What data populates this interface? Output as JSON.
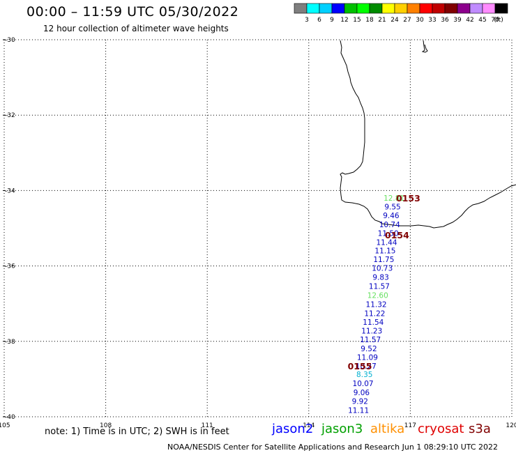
{
  "header": {
    "title": "00:00 – 11:59 UTC 05/30/2022",
    "subtitle": "12 hour collection of altimeter wave heights"
  },
  "scale": {
    "colors": [
      "#7f7f7f",
      "#00ffff",
      "#00d0ff",
      "#0000ff",
      "#00c000",
      "#00ff00",
      "#008c00",
      "#ffff00",
      "#ffd000",
      "#ff8000",
      "#ff0000",
      "#c00000",
      "#800000",
      "#8c008c",
      "#c08cff",
      "#ff8cff",
      "#000000"
    ],
    "labels": [
      "3",
      "6",
      "9",
      "12",
      "15",
      "18",
      "21",
      "24",
      "27",
      "30",
      "33",
      "36",
      "39",
      "42",
      "45",
      "70",
      "(ft)"
    ]
  },
  "axes": {
    "lat_labels": [
      "-30",
      "-32",
      "-34",
      "-36",
      "-38",
      "-40"
    ],
    "lon_labels": [
      "105",
      "108",
      "111",
      "114",
      "117",
      "120"
    ]
  },
  "observations": [
    {
      "value": "12.81",
      "color": "#66e060",
      "lat": -34.27
    },
    {
      "value": "9.55",
      "color": "#0000c0",
      "lat": -34.5
    },
    {
      "value": "9.46",
      "color": "#0000c0",
      "lat": -34.73
    },
    {
      "value": "10.74",
      "color": "#0000c0",
      "lat": -34.97
    },
    {
      "value": "11.50",
      "color": "#0000c0",
      "lat": -35.2
    },
    {
      "value": "11.44",
      "color": "#0000c0",
      "lat": -35.44
    },
    {
      "value": "11.15",
      "color": "#0000c0",
      "lat": -35.67
    },
    {
      "value": "11.75",
      "color": "#0000c0",
      "lat": -35.9
    },
    {
      "value": "10.73",
      "color": "#0000c0",
      "lat": -36.13
    },
    {
      "value": "9.83",
      "color": "#0000c0",
      "lat": -36.37
    },
    {
      "value": "11.57",
      "color": "#0000c0",
      "lat": -36.61
    },
    {
      "value": "12.60",
      "color": "#66e060",
      "lat": -36.85
    },
    {
      "value": "11.32",
      "color": "#0000c0",
      "lat": -37.09
    },
    {
      "value": "11.22",
      "color": "#0000c0",
      "lat": -37.33
    },
    {
      "value": "11.54",
      "color": "#0000c0",
      "lat": -37.56
    },
    {
      "value": "11.23",
      "color": "#0000c0",
      "lat": -37.79
    },
    {
      "value": "11.57",
      "color": "#0000c0",
      "lat": -38.02
    },
    {
      "value": "9.52",
      "color": "#0000c0",
      "lat": -38.26
    },
    {
      "value": "11.09",
      "color": "#0000c0",
      "lat": -38.49
    },
    {
      "value": "10.27",
      "color": "#0000c0",
      "lat": -38.72
    },
    {
      "value": "8.35",
      "color": "#00b0d0",
      "lat": -38.95
    },
    {
      "value": "10.07",
      "color": "#0000c0",
      "lat": -39.19
    },
    {
      "value": "9.06",
      "color": "#0000c0",
      "lat": -39.43
    },
    {
      "value": "9.92",
      "color": "#0000c0",
      "lat": -39.66
    },
    {
      "value": "11.11",
      "color": "#0000c0",
      "lat": -39.9
    }
  ],
  "time_labels": [
    {
      "text": "0153",
      "lon": 116.58,
      "lat": -34.27
    },
    {
      "text": "0154",
      "lon": 116.25,
      "lat": -35.25
    },
    {
      "text": "0155",
      "lon": 115.15,
      "lat": -38.72
    }
  ],
  "time_label_color": "#800000",
  "footer": {
    "note": "note:  1) Time is in UTC;  2) SWH is in feet",
    "credit": "NOAA/NESDIS Center for Satellite Applications and Research    Jun  1 08:29:10 UTC 2022",
    "satellites": [
      {
        "name": "jason2",
        "color": "#0000ff"
      },
      {
        "name": "jason3",
        "color": "#00a000"
      },
      {
        "name": "altika",
        "color": "#ff9000"
      },
      {
        "name": "cryosat",
        "color": "#e00000"
      },
      {
        "name": "s3a",
        "color": "#800000"
      }
    ]
  }
}
